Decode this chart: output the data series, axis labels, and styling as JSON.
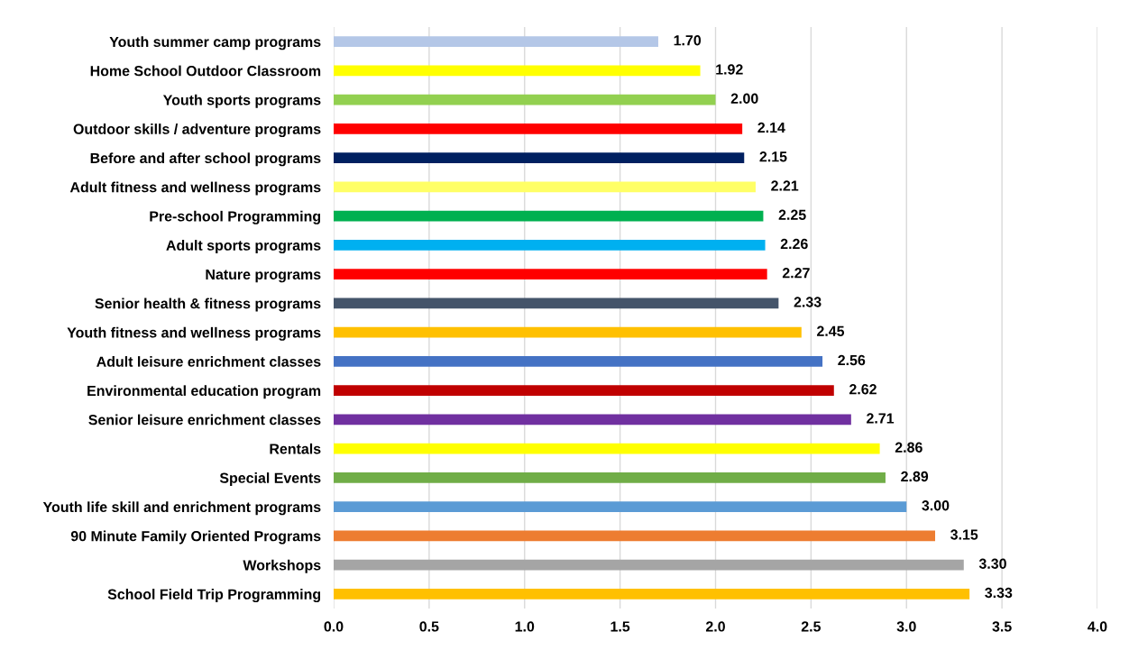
{
  "chart_data": {
    "type": "bar",
    "orientation": "horizontal",
    "categories": [
      "Youth summer camp programs",
      "Home School Outdoor Classroom",
      "Youth sports programs",
      "Outdoor skills / adventure programs",
      "Before and after school programs",
      "Adult fitness and wellness programs",
      "Pre-school Programming",
      "Adult sports programs",
      "Nature programs",
      "Senior health & fitness programs",
      "Youth fitness and wellness programs",
      "Adult leisure enrichment classes",
      "Environmental education program",
      "Senior leisure enrichment classes",
      "Rentals",
      "Special Events",
      "Youth life skill and enrichment programs",
      "90 Minute Family Oriented Programs",
      "Workshops",
      "School Field Trip Programming"
    ],
    "values": [
      1.7,
      1.92,
      2.0,
      2.14,
      2.15,
      2.21,
      2.25,
      2.26,
      2.27,
      2.33,
      2.45,
      2.56,
      2.62,
      2.71,
      2.86,
      2.89,
      3.0,
      3.15,
      3.3,
      3.33
    ],
    "value_labels": [
      "1.70",
      "1.92",
      "2.00",
      "2.14",
      "2.15",
      "2.21",
      "2.25",
      "2.26",
      "2.27",
      "2.33",
      "2.45",
      "2.56",
      "2.62",
      "2.71",
      "2.86",
      "2.89",
      "3.00",
      "3.15",
      "3.30",
      "3.33"
    ],
    "colors": [
      "#b4c7e7",
      "#ffff00",
      "#92d050",
      "#ff0000",
      "#002060",
      "#ffff66",
      "#00b050",
      "#00b0f0",
      "#ff0000",
      "#44546a",
      "#ffc000",
      "#4472c4",
      "#c00000",
      "#7030a0",
      "#ffff00",
      "#70ad47",
      "#5b9bd5",
      "#ed7d31",
      "#a5a5a5",
      "#ffc000"
    ],
    "xlim": [
      0,
      4
    ],
    "xticks": [
      {
        "value": 0,
        "label": "0.0"
      },
      0.5,
      {
        "value": 1,
        "label": "1.0"
      },
      1.5,
      {
        "value": 2,
        "label": "2.0"
      },
      2.5,
      {
        "value": 3,
        "label": "3.0"
      },
      3.5,
      {
        "value": 4,
        "label": "4.0"
      }
    ],
    "grid": "x"
  }
}
